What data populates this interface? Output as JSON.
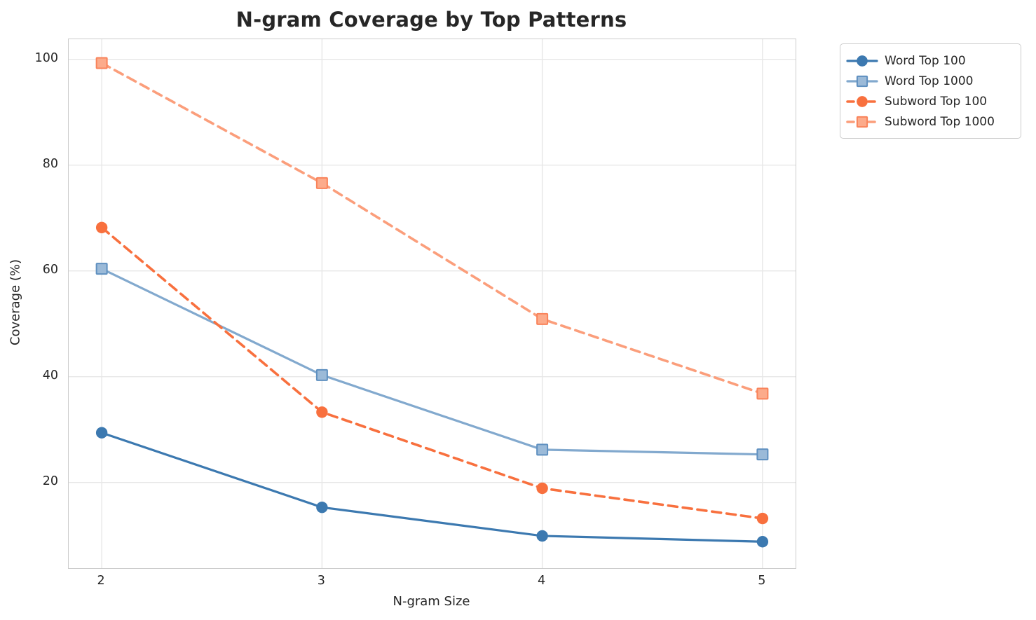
{
  "chart_data": {
    "type": "line",
    "title": "N-gram Coverage by Top Patterns",
    "xlabel": "N-gram Size",
    "ylabel": "Coverage (%)",
    "x": [
      2,
      3,
      4,
      5
    ],
    "xtick_labels": [
      "2",
      "3",
      "4",
      "5"
    ],
    "yticks": [
      20,
      40,
      60,
      80,
      100
    ],
    "ytick_labels": [
      "20",
      "40",
      "60",
      "80",
      "100"
    ],
    "xlim": [
      1.85,
      5.15
    ],
    "ylim": [
      3.8,
      103.8
    ],
    "grid": true,
    "legend_position": "outside-upper-right",
    "colors": {
      "grid": "#e7e7e7",
      "spine": "#cccccc",
      "text": "#262626"
    },
    "series": [
      {
        "name": "Word Top 100",
        "values": [
          29.4,
          15.3,
          9.9,
          8.8
        ],
        "color": "#3c79b0",
        "line_style": "solid",
        "line_width": 3.2,
        "marker": "circle",
        "marker_fill": "#3c79b0",
        "marker_edge": "#3c79b0"
      },
      {
        "name": "Word Top 1000",
        "values": [
          60.4,
          40.3,
          26.2,
          25.3
        ],
        "color": "#82a9ce",
        "line_style": "solid",
        "line_width": 3.2,
        "marker": "square",
        "marker_fill": "#9bbad8",
        "marker_edge": "#5f90c0"
      },
      {
        "name": "Subword Top 100",
        "values": [
          68.2,
          33.3,
          18.9,
          13.2
        ],
        "color": "#f8703e",
        "line_style": "dashed",
        "line_width": 3.6,
        "marker": "circle",
        "marker_fill": "#f8703e",
        "marker_edge": "#f8703e"
      },
      {
        "name": "Subword Top 1000",
        "values": [
          99.3,
          76.6,
          50.9,
          36.8
        ],
        "color": "#fb9e7b",
        "line_style": "dashed",
        "line_width": 3.6,
        "marker": "square",
        "marker_fill": "#fcab8b",
        "marker_edge": "#f9835a"
      }
    ]
  }
}
